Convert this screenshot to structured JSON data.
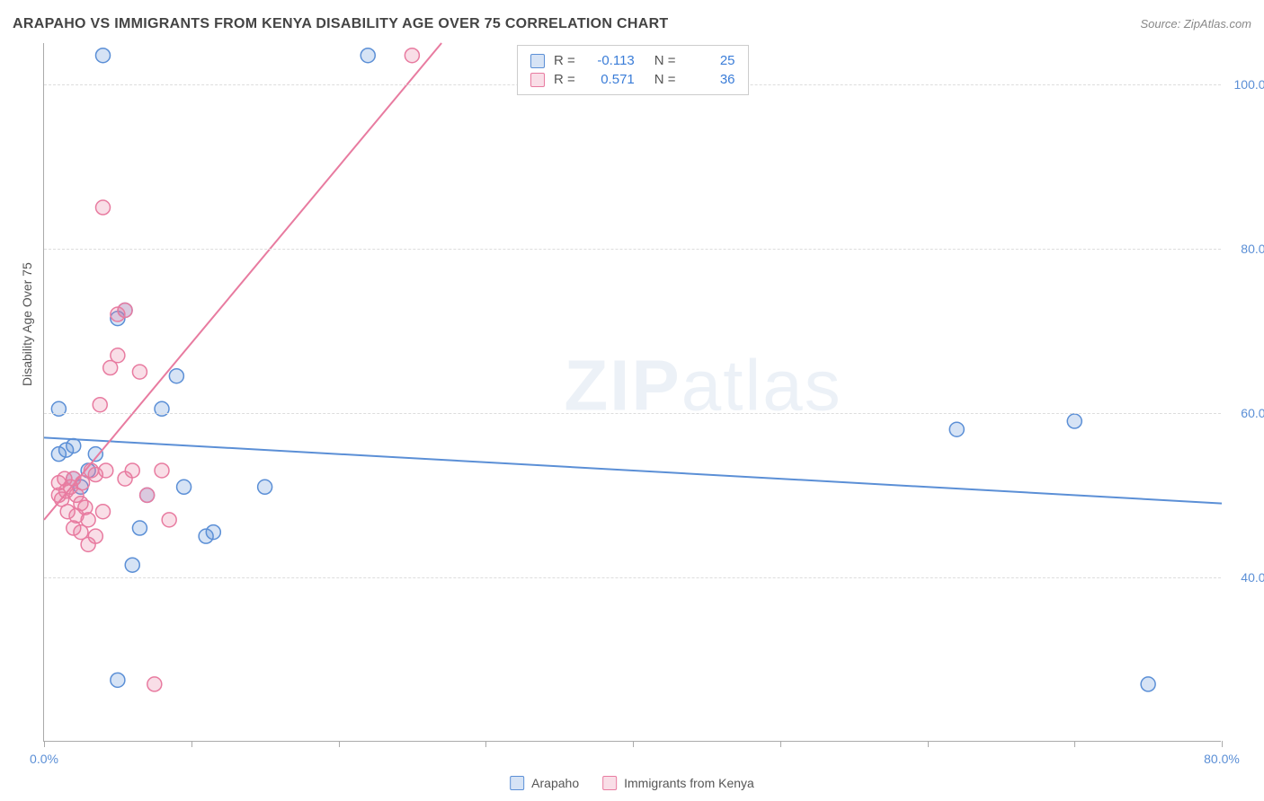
{
  "title": "ARAPAHO VS IMMIGRANTS FROM KENYA DISABILITY AGE OVER 75 CORRELATION CHART",
  "source": "Source: ZipAtlas.com",
  "y_axis_label": "Disability Age Over 75",
  "watermark": "ZIPatlas",
  "chart": {
    "type": "scatter",
    "background_color": "#ffffff",
    "grid_color": "#dddddd",
    "axis_color": "#aaaaaa",
    "xlim": [
      0,
      80
    ],
    "ylim": [
      20,
      105
    ],
    "xticks": [
      0,
      10,
      20,
      30,
      40,
      50,
      60,
      70,
      80
    ],
    "xtick_labels": {
      "0": "0.0%",
      "80": "80.0%"
    },
    "yticks": [
      40,
      60,
      80,
      100
    ],
    "ytick_labels": {
      "40": "40.0%",
      "60": "60.0%",
      "80": "80.0%",
      "100": "100.0%"
    },
    "tick_label_color": "#5b8fd6",
    "tick_label_fontsize": 14,
    "marker_radius": 8,
    "marker_fill_opacity": 0.25,
    "marker_stroke_width": 1.5,
    "trend_line_width": 2,
    "series": [
      {
        "name": "Arapaho",
        "color": "#5b8fd6",
        "fill": "rgba(91,143,214,0.25)",
        "R": "-0.113",
        "N": "25",
        "trend": {
          "x1": 0,
          "y1": 57,
          "x2": 80,
          "y2": 49
        },
        "points": [
          [
            4,
            103.5
          ],
          [
            22,
            103.5
          ],
          [
            1,
            60.5
          ],
          [
            1,
            55
          ],
          [
            1.5,
            55.5
          ],
          [
            2,
            52
          ],
          [
            2.5,
            51
          ],
          [
            5,
            71.5
          ],
          [
            5.5,
            72.5
          ],
          [
            6,
            41.5
          ],
          [
            6.5,
            46
          ],
          [
            8,
            60.5
          ],
          [
            9,
            64.5
          ],
          [
            9.5,
            51
          ],
          [
            11,
            45
          ],
          [
            11.5,
            45.5
          ],
          [
            15,
            51
          ],
          [
            5,
            27.5
          ],
          [
            62,
            58
          ],
          [
            70,
            59
          ],
          [
            75,
            27
          ],
          [
            7,
            50
          ],
          [
            3,
            53
          ],
          [
            2,
            56
          ],
          [
            3.5,
            55
          ]
        ]
      },
      {
        "name": "Immigrants from Kenya",
        "color": "#e87ba0",
        "fill": "rgba(232,123,160,0.25)",
        "R": "0.571",
        "N": "36",
        "trend": {
          "x1": 0,
          "y1": 47,
          "x2": 27,
          "y2": 105
        },
        "points": [
          [
            25,
            103.5
          ],
          [
            4,
            85
          ],
          [
            1,
            50
          ],
          [
            1.2,
            49.5
          ],
          [
            1.5,
            50.5
          ],
          [
            1.8,
            51
          ],
          [
            2,
            52
          ],
          [
            2.2,
            50
          ],
          [
            2.5,
            49
          ],
          [
            2,
            46
          ],
          [
            2.5,
            45.5
          ],
          [
            3,
            47
          ],
          [
            3.2,
            53
          ],
          [
            3.5,
            52.5
          ],
          [
            3.8,
            61
          ],
          [
            4,
            48
          ],
          [
            4.2,
            53
          ],
          [
            4.5,
            65.5
          ],
          [
            5,
            72
          ],
          [
            5,
            67
          ],
          [
            5.5,
            72.5
          ],
          [
            5.5,
            52
          ],
          [
            6,
            53
          ],
          [
            6.5,
            65
          ],
          [
            7,
            50
          ],
          [
            7.5,
            27
          ],
          [
            8,
            53
          ],
          [
            8.5,
            47
          ],
          [
            3,
            44
          ],
          [
            3.5,
            45
          ],
          [
            2.8,
            48.5
          ],
          [
            2.2,
            47.5
          ],
          [
            1.6,
            48
          ],
          [
            1,
            51.5
          ],
          [
            1.4,
            52
          ],
          [
            2.6,
            51.5
          ]
        ]
      }
    ]
  },
  "corr_box": {
    "rows": [
      {
        "label_r": "R =",
        "r": "-0.113",
        "label_n": "N =",
        "n": "25",
        "swatch": "#5b8fd6",
        "fill": "rgba(91,143,214,0.25)"
      },
      {
        "label_r": "R =",
        "r": "0.571",
        "label_n": "N =",
        "n": "36",
        "swatch": "#e87ba0",
        "fill": "rgba(232,123,160,0.25)"
      }
    ]
  },
  "legend": {
    "items": [
      {
        "label": "Arapaho",
        "color": "#5b8fd6",
        "fill": "rgba(91,143,214,0.25)"
      },
      {
        "label": "Immigrants from Kenya",
        "color": "#e87ba0",
        "fill": "rgba(232,123,160,0.25)"
      }
    ]
  }
}
